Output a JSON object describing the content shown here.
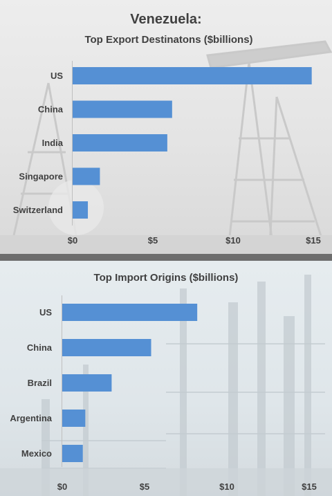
{
  "colors": {
    "bar": "#5590d4",
    "text": "#404040",
    "divider": "#6d6d6d"
  },
  "chart_data": [
    {
      "type": "bar",
      "orientation": "horizontal",
      "title": "Venezuela:",
      "subtitle": "Top Export Destinatons ($billions)",
      "categories": [
        "US",
        "China",
        "India",
        "Singapore",
        "Switzerland"
      ],
      "values": [
        14.9,
        6.2,
        5.9,
        1.7,
        0.95
      ],
      "xlim": [
        0,
        15
      ],
      "xticks": [
        "$0",
        "$5",
        "$10",
        "$15"
      ],
      "grid": false
    },
    {
      "type": "bar",
      "orientation": "horizontal",
      "title": "Top Import Origins ($billions)",
      "categories": [
        "US",
        "China",
        "Brazil",
        "Argentina",
        "Mexico"
      ],
      "values": [
        8.2,
        5.4,
        3.0,
        1.4,
        1.25
      ],
      "xlim": [
        0,
        15
      ],
      "xticks": [
        "$0",
        "$5",
        "$10",
        "$15"
      ],
      "grid": false
    }
  ]
}
